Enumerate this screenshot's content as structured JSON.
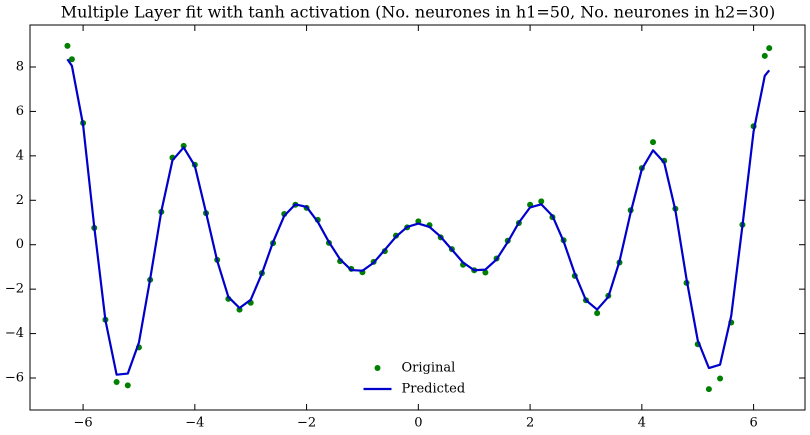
{
  "chart_data": {
    "type": "line",
    "title": "Multiple Layer fit with tanh activation (No. neurones in h1=50, No. neurones in h2=30)",
    "x": [
      -6.28,
      -6.2,
      -6.0,
      -5.8,
      -5.6,
      -5.4,
      -5.2,
      -5.0,
      -4.8,
      -4.6,
      -4.4,
      -4.2,
      -4.0,
      -3.8,
      -3.6,
      -3.4,
      -3.2,
      -3.0,
      -2.8,
      -2.6,
      -2.4,
      -2.2,
      -2.0,
      -1.8,
      -1.6,
      -1.4,
      -1.2,
      -1.0,
      -0.8,
      -0.6,
      -0.4,
      -0.2,
      0,
      0.2,
      0.4,
      0.6,
      0.8,
      1.0,
      1.2,
      1.4,
      1.6,
      1.8,
      2.0,
      2.2,
      2.4,
      2.6,
      2.8,
      3.0,
      3.2,
      3.4,
      3.6,
      3.8,
      4.0,
      4.2,
      4.4,
      4.6,
      4.8,
      5.0,
      5.2,
      5.4,
      5.6,
      5.8,
      6.0,
      6.2,
      6.28
    ],
    "series": [
      {
        "name": "Original",
        "color": "#008000",
        "style": "scatter",
        "values": [
          8.95,
          8.35,
          5.48,
          0.76,
          -3.38,
          -6.18,
          -6.33,
          -4.62,
          -1.58,
          1.48,
          3.92,
          4.45,
          3.6,
          1.42,
          -0.68,
          -2.44,
          -2.92,
          -2.61,
          -1.28,
          0.07,
          1.38,
          1.8,
          1.66,
          1.12,
          0.08,
          -0.74,
          -1.09,
          -1.24,
          -0.77,
          -0.29,
          0.41,
          0.78,
          1.05,
          0.88,
          0.33,
          -0.2,
          -0.9,
          -1.15,
          -1.25,
          -0.62,
          0.18,
          0.98,
          1.8,
          1.95,
          1.24,
          0.2,
          -1.4,
          -2.5,
          -3.08,
          -2.3,
          -0.8,
          1.55,
          3.45,
          4.62,
          3.78,
          1.62,
          -1.72,
          -4.48,
          -6.5,
          -6.02,
          -3.5,
          0.9,
          5.33,
          8.5,
          8.85
        ]
      },
      {
        "name": "Predicted",
        "color": "#0000cc",
        "style": "line",
        "values": [
          8.35,
          8.05,
          5.4,
          0.8,
          -3.4,
          -5.85,
          -5.8,
          -4.4,
          -1.55,
          1.5,
          3.8,
          4.38,
          3.55,
          1.45,
          -0.72,
          -2.35,
          -2.85,
          -2.48,
          -1.3,
          0.12,
          1.3,
          1.82,
          1.7,
          1.03,
          0.12,
          -0.66,
          -1.14,
          -1.17,
          -0.81,
          -0.23,
          0.36,
          0.8,
          0.95,
          0.8,
          0.36,
          -0.22,
          -0.8,
          -1.15,
          -1.12,
          -0.66,
          0.12,
          1.0,
          1.68,
          1.82,
          1.3,
          0.15,
          -1.3,
          -2.5,
          -2.92,
          -2.35,
          -0.75,
          1.45,
          3.4,
          4.25,
          3.7,
          1.55,
          -1.55,
          -4.3,
          -5.55,
          -5.4,
          -3.2,
          0.85,
          5.1,
          7.6,
          7.85
        ]
      }
    ],
    "xlim": [
      -6.95,
      6.92
    ],
    "xticks": [
      {
        "value": -6,
        "label": "−6"
      },
      {
        "value": -4,
        "label": "−4"
      },
      {
        "value": -2,
        "label": "−2"
      },
      0,
      2,
      4,
      6
    ],
    "ylim": [
      -7.44,
      9.89
    ],
    "yticks": [
      {
        "value": -6,
        "label": "−6"
      },
      {
        "value": -4,
        "label": "−4"
      },
      {
        "value": -2,
        "label": "−2"
      },
      0,
      2,
      4,
      6,
      8
    ],
    "grid": false,
    "legend": "lower center"
  }
}
